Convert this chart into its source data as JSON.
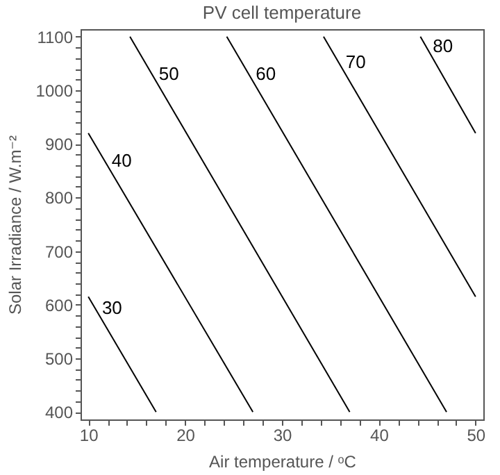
{
  "chart_data": {
    "type": "line",
    "title": "PV cell temperature",
    "xlabel": "Air temperature / ᵒC",
    "ylabel": "Solar Irradiance / W.m⁻²",
    "xlim": [
      9.2,
      50.8
    ],
    "ylim": [
      386,
      1114
    ],
    "xticks": [
      10,
      {
        "value": 12,
        "label": null
      },
      {
        "value": 14,
        "label": null
      },
      {
        "value": 16,
        "label": null
      },
      {
        "value": 18,
        "label": null
      },
      20,
      {
        "value": 22,
        "label": null
      },
      {
        "value": 24,
        "label": null
      },
      {
        "value": 26,
        "label": null
      },
      {
        "value": 28,
        "label": null
      },
      30,
      {
        "value": 32,
        "label": null
      },
      {
        "value": 34,
        "label": null
      },
      {
        "value": 36,
        "label": null
      },
      {
        "value": 38,
        "label": null
      },
      40,
      {
        "value": 42,
        "label": null
      },
      {
        "value": 44,
        "label": null
      },
      {
        "value": 46,
        "label": null
      },
      {
        "value": 48,
        "label": null
      },
      50
    ],
    "yticks": [
      400,
      {
        "value": 420,
        "label": null
      },
      {
        "value": 440,
        "label": null
      },
      {
        "value": 460,
        "label": null
      },
      {
        "value": 480,
        "label": null
      },
      500,
      {
        "value": 520,
        "label": null
      },
      {
        "value": 540,
        "label": null
      },
      {
        "value": 560,
        "label": null
      },
      {
        "value": 580,
        "label": null
      },
      600,
      {
        "value": 620,
        "label": null
      },
      {
        "value": 640,
        "label": null
      },
      {
        "value": 660,
        "label": null
      },
      {
        "value": 680,
        "label": null
      },
      700,
      {
        "value": 720,
        "label": null
      },
      {
        "value": 740,
        "label": null
      },
      {
        "value": 760,
        "label": null
      },
      {
        "value": 780,
        "label": null
      },
      800,
      {
        "value": 820,
        "label": null
      },
      {
        "value": 840,
        "label": null
      },
      {
        "value": 860,
        "label": null
      },
      {
        "value": 880,
        "label": null
      },
      900,
      {
        "value": 920,
        "label": null
      },
      {
        "value": 940,
        "label": null
      },
      {
        "value": 960,
        "label": null
      },
      {
        "value": 980,
        "label": null
      },
      1000,
      {
        "value": 1020,
        "label": null
      },
      {
        "value": 1040,
        "label": null
      },
      {
        "value": 1060,
        "label": null
      },
      {
        "value": 1080,
        "label": null
      },
      1100
    ],
    "series": [
      {
        "name": "30",
        "color": "#000000",
        "x": [
          10,
          17
        ],
        "values": [
          615,
          400
        ]
      },
      {
        "name": "40",
        "color": "#000000",
        "x": [
          10,
          27
        ],
        "values": [
          920,
          400
        ]
      },
      {
        "name": "50",
        "color": "#000000",
        "x": [
          14.3,
          37
        ],
        "values": [
          1100,
          400
        ]
      },
      {
        "name": "60",
        "color": "#000000",
        "x": [
          24.3,
          47
        ],
        "values": [
          1100,
          400
        ]
      },
      {
        "name": "70",
        "color": "#000000",
        "x": [
          34.3,
          50
        ],
        "values": [
          1100,
          615
        ]
      },
      {
        "name": "80",
        "color": "#000000",
        "x": [
          44.3,
          50
        ],
        "values": [
          1100,
          920
        ]
      }
    ],
    "grid": false,
    "legend": false
  }
}
